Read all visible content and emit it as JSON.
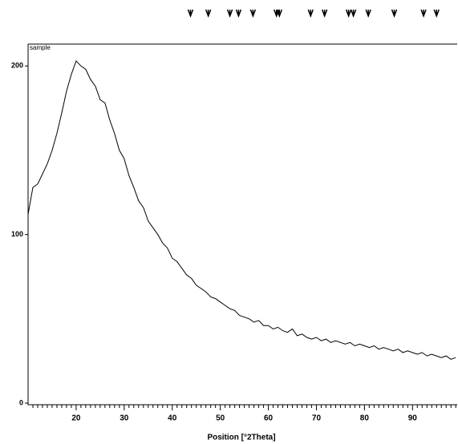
{
  "chart_data": {
    "type": "line",
    "label": "sample",
    "x_label": "Position [°2Theta]",
    "x": [
      10,
      11,
      12,
      13,
      14,
      15,
      16,
      17,
      18,
      19,
      20,
      21,
      22,
      23,
      24,
      25,
      26,
      27,
      28,
      29,
      30,
      31,
      32,
      33,
      34,
      35,
      36,
      37,
      38,
      39,
      40,
      41,
      42,
      43,
      44,
      45,
      46,
      47,
      48,
      49,
      50,
      51,
      52,
      53,
      54,
      55,
      56,
      57,
      58,
      59,
      60,
      61,
      62,
      63,
      64,
      65,
      66,
      67,
      68,
      69,
      70,
      71,
      72,
      73,
      74,
      75,
      76,
      77,
      78,
      79,
      80,
      81,
      82,
      83,
      84,
      85,
      86,
      87,
      88,
      89,
      90,
      91,
      92,
      93,
      94,
      95,
      96,
      97,
      98,
      99
    ],
    "series": [
      {
        "color": "#000000",
        "values": [
          112,
          128,
          130,
          136,
          142,
          150,
          160,
          172,
          185,
          195,
          203,
          200,
          198,
          192,
          188,
          180,
          178,
          168,
          160,
          150,
          145,
          135,
          128,
          120,
          116,
          108,
          104,
          100,
          95,
          92,
          86,
          84,
          80,
          76,
          74,
          70,
          68,
          66,
          63,
          62,
          60,
          58,
          56,
          55,
          52,
          51,
          50,
          48,
          49,
          46,
          46,
          44,
          45,
          43,
          42,
          44,
          40,
          41,
          39,
          38,
          39,
          37,
          38,
          36,
          37,
          36,
          35,
          36,
          34,
          35,
          34,
          33,
          34,
          32,
          33,
          32,
          31,
          32,
          30,
          31,
          30,
          29,
          30,
          28,
          29,
          28,
          27,
          28,
          26,
          27
        ]
      }
    ],
    "reference_peaks": [
      43.8,
      47.5,
      52,
      53.8,
      56.8,
      61.7,
      62.3,
      68.8,
      71.7,
      76.7,
      77.7,
      80.8,
      86.2,
      92.3,
      95
    ],
    "xlim": [
      10,
      99.3
    ],
    "ylim": [
      0,
      213
    ],
    "xticks": [
      20,
      30,
      40,
      50,
      60,
      70,
      80,
      90
    ],
    "xminorticks": [
      11,
      12,
      13,
      14,
      15,
      16,
      17,
      18,
      19,
      21,
      22,
      23,
      24,
      25,
      26,
      27,
      28,
      29,
      31,
      32,
      33,
      34,
      35,
      36,
      37,
      38,
      39,
      41,
      42,
      43,
      44,
      45,
      46,
      47,
      48,
      49,
      51,
      52,
      53,
      54,
      55,
      56,
      57,
      58,
      59,
      61,
      62,
      63,
      64,
      65,
      66,
      67,
      68,
      69,
      71,
      72,
      73,
      74,
      75,
      76,
      77,
      78,
      79,
      81,
      82,
      83,
      84,
      85,
      86,
      87,
      88,
      89,
      91,
      92,
      93,
      94,
      95,
      96,
      97,
      98,
      99
    ],
    "yticks": [
      0,
      100,
      200
    ]
  }
}
